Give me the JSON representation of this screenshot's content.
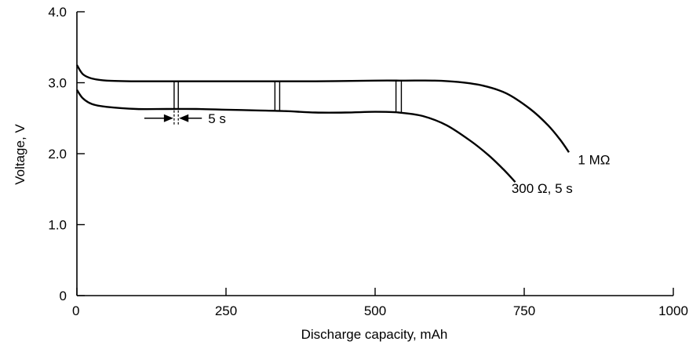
{
  "chart_data": {
    "type": "line",
    "xlabel": "Discharge capacity, mAh",
    "ylabel": "Voltage, V",
    "xlim": [
      0,
      1000
    ],
    "ylim": [
      0,
      4.0
    ],
    "xticks": [
      0,
      250,
      500,
      750,
      1000
    ],
    "xtick_labels": [
      "0",
      "250",
      "500",
      "750",
      "1000"
    ],
    "yticks": [
      0,
      1.0,
      2.0,
      3.0,
      4.0
    ],
    "ytick_labels": [
      "0",
      "1.0",
      "2.0",
      "3.0",
      "4.0"
    ],
    "grid": false,
    "series": [
      {
        "name": "1 MΩ",
        "x": [
          0,
          10,
          25,
          50,
          100,
          200,
          300,
          400,
          500,
          550,
          600,
          640,
          680,
          720,
          760,
          790,
          810,
          825
        ],
        "y": [
          3.25,
          3.12,
          3.06,
          3.03,
          3.02,
          3.02,
          3.02,
          3.02,
          3.03,
          3.03,
          3.03,
          3.01,
          2.96,
          2.85,
          2.63,
          2.4,
          2.2,
          2.02
        ]
      },
      {
        "name": "300 Ω, 5 s",
        "x": [
          0,
          10,
          25,
          50,
          100,
          150,
          200,
          250,
          300,
          350,
          400,
          450,
          500,
          540,
          580,
          620,
          660,
          690,
          715,
          735
        ],
        "y": [
          2.9,
          2.78,
          2.7,
          2.66,
          2.63,
          2.63,
          2.63,
          2.62,
          2.61,
          2.6,
          2.58,
          2.58,
          2.59,
          2.58,
          2.53,
          2.4,
          2.18,
          1.98,
          1.78,
          1.6
        ]
      }
    ],
    "pulse_markers": [
      {
        "x1": 163,
        "x2": 170,
        "y_top": 3.02,
        "y_bottom": 2.63
      },
      {
        "x1": 332,
        "x2": 340,
        "y_top": 3.02,
        "y_bottom": 2.61
      },
      {
        "x1": 535,
        "x2": 544,
        "y_top": 3.03,
        "y_bottom": 2.58
      }
    ],
    "annotations": [
      {
        "text": "5 s",
        "x": 167,
        "y": 2.5
      },
      {
        "text": "1 MΩ",
        "x": 840,
        "y": 1.85
      },
      {
        "text": "300 Ω, 5 s",
        "x": 780,
        "y": 1.45
      }
    ]
  }
}
